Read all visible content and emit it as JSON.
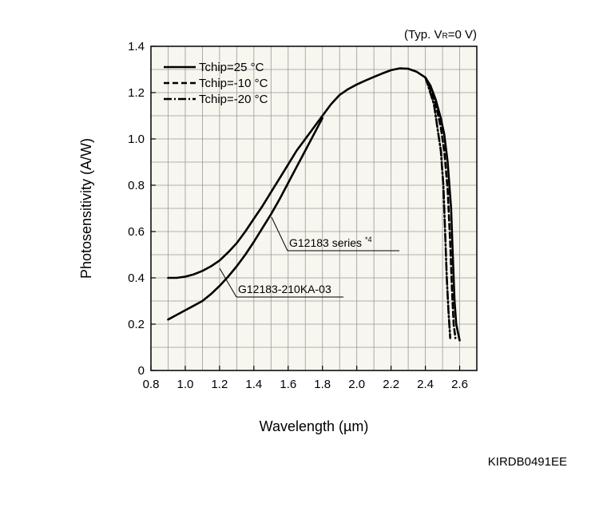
{
  "chart_data": {
    "type": "line",
    "condition": "(Typ. V",
    "condition_sub": "R",
    "condition_tail": "=0 V)",
    "xlabel": "Wavelength (µm)",
    "ylabel": "Photosensitivity (A/W)",
    "xlim": [
      0.8,
      2.7
    ],
    "ylim": [
      0,
      1.4
    ],
    "xticks": [
      0.8,
      1.0,
      1.2,
      1.4,
      1.6,
      1.8,
      2.0,
      2.2,
      2.4,
      2.6
    ],
    "xtick_labels": [
      "0.8",
      "1.0",
      "1.2",
      "1.4",
      "1.6",
      "1.8",
      "2.0",
      "2.2",
      "2.4",
      "2.6"
    ],
    "yticks": [
      0,
      0.2,
      0.4,
      0.6,
      0.8,
      1.0,
      1.2,
      1.4
    ],
    "ytick_labels": [
      "0",
      "0.2",
      "0.4",
      "0.6",
      "0.8",
      "1.0",
      "1.2",
      "1.4"
    ],
    "grid": true,
    "legend_position": "top-left",
    "legend": [
      {
        "label": "Tchip=25 °C",
        "style": "solid"
      },
      {
        "label": "Tchip=-10 °C",
        "style": "dashed"
      },
      {
        "label": "Tchip=-20 °C",
        "style": "dashdot"
      }
    ],
    "annotations": [
      {
        "text": "G12183 series ",
        "sup": "*4"
      },
      {
        "text": "G12183-210KA-03",
        "sup": ""
      }
    ],
    "series": [
      {
        "style": "solid",
        "points": [
          [
            0.9,
            0.4
          ],
          [
            0.95,
            0.4
          ],
          [
            1.0,
            0.405
          ],
          [
            1.05,
            0.415
          ],
          [
            1.1,
            0.43
          ],
          [
            1.15,
            0.45
          ],
          [
            1.2,
            0.475
          ],
          [
            1.25,
            0.51
          ],
          [
            1.3,
            0.55
          ],
          [
            1.35,
            0.6
          ],
          [
            1.4,
            0.655
          ],
          [
            1.45,
            0.71
          ],
          [
            1.5,
            0.77
          ],
          [
            1.55,
            0.83
          ],
          [
            1.6,
            0.89
          ],
          [
            1.65,
            0.95
          ],
          [
            1.7,
            1.0
          ],
          [
            1.75,
            1.05
          ],
          [
            1.8,
            1.1
          ],
          [
            1.85,
            1.15
          ],
          [
            1.9,
            1.19
          ],
          [
            1.95,
            1.215
          ],
          [
            2.0,
            1.235
          ],
          [
            2.05,
            1.252
          ],
          [
            2.1,
            1.268
          ],
          [
            2.15,
            1.283
          ],
          [
            2.2,
            1.297
          ],
          [
            2.25,
            1.305
          ],
          [
            2.3,
            1.303
          ],
          [
            2.35,
            1.29
          ],
          [
            2.4,
            1.265
          ],
          [
            2.43,
            1.23
          ],
          [
            2.46,
            1.17
          ],
          [
            2.49,
            1.09
          ],
          [
            2.51,
            1.02
          ],
          [
            2.53,
            0.9
          ],
          [
            2.55,
            0.7
          ],
          [
            2.56,
            0.5
          ],
          [
            2.57,
            0.3
          ],
          [
            2.58,
            0.2
          ],
          [
            2.6,
            0.13
          ]
        ]
      },
      {
        "style": "solid",
        "points": [
          [
            0.9,
            0.22
          ],
          [
            0.95,
            0.24
          ],
          [
            1.0,
            0.26
          ],
          [
            1.05,
            0.28
          ],
          [
            1.1,
            0.3
          ],
          [
            1.15,
            0.33
          ],
          [
            1.2,
            0.365
          ],
          [
            1.25,
            0.405
          ],
          [
            1.3,
            0.45
          ],
          [
            1.35,
            0.5
          ],
          [
            1.4,
            0.555
          ],
          [
            1.45,
            0.615
          ],
          [
            1.5,
            0.675
          ],
          [
            1.55,
            0.74
          ],
          [
            1.6,
            0.81
          ],
          [
            1.65,
            0.88
          ],
          [
            1.7,
            0.95
          ],
          [
            1.75,
            1.02
          ],
          [
            1.8,
            1.09
          ]
        ]
      },
      {
        "style": "dashed",
        "points": [
          [
            2.4,
            1.265
          ],
          [
            2.43,
            1.22
          ],
          [
            2.46,
            1.15
          ],
          [
            2.49,
            1.05
          ],
          [
            2.51,
            0.95
          ],
          [
            2.53,
            0.78
          ],
          [
            2.545,
            0.55
          ],
          [
            2.555,
            0.35
          ],
          [
            2.565,
            0.2
          ],
          [
            2.575,
            0.14
          ]
        ]
      },
      {
        "style": "dashdot",
        "points": [
          [
            2.4,
            1.265
          ],
          [
            2.42,
            1.22
          ],
          [
            2.45,
            1.15
          ],
          [
            2.47,
            1.05
          ],
          [
            2.49,
            0.95
          ],
          [
            2.505,
            0.8
          ],
          [
            2.515,
            0.6
          ],
          [
            2.525,
            0.4
          ],
          [
            2.535,
            0.25
          ],
          [
            2.545,
            0.14
          ]
        ]
      }
    ]
  },
  "document_id": "KIRDB0491EE"
}
